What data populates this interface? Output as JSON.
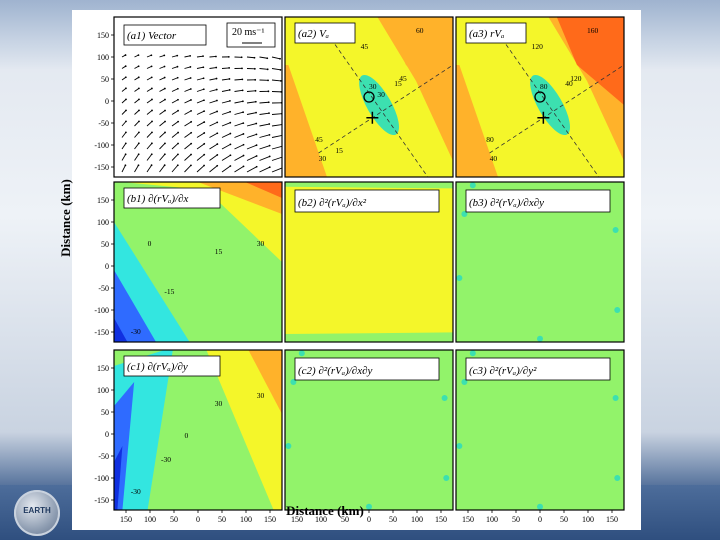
{
  "figure": {
    "y_axis_label": "Distance (km)",
    "x_axis_label": "Distance (km)",
    "tick_values": [
      "150",
      "100",
      "50",
      "0",
      "-50",
      "-100",
      "-150"
    ],
    "x_tick_values": [
      "150",
      "100",
      "50",
      "0",
      "50",
      "100",
      "150"
    ],
    "panels": [
      {
        "id": "a1",
        "title": "(a1) Vector",
        "scale_label": "20 ms⁻¹",
        "kind": "vector"
      },
      {
        "id": "a2",
        "title": "(a2) Vₐ",
        "kind": "contour-va",
        "contour_labels": [
          "60",
          "45",
          "30",
          "15",
          "30",
          "45",
          "45",
          "30",
          "15"
        ]
      },
      {
        "id": "a3",
        "title": "(a3) rVₐ",
        "kind": "contour-rva",
        "contour_labels": [
          "160",
          "120",
          "80",
          "40",
          "40",
          "80",
          "120"
        ]
      },
      {
        "id": "b1",
        "title": "(b1) ∂(rVₐ)/∂x",
        "kind": "contour-b1",
        "contour_labels": [
          "30",
          "15",
          "0",
          "-15",
          "-30"
        ]
      },
      {
        "id": "b2",
        "title": "(b2) ∂²(rVₐ)/∂x²",
        "kind": "flat-yellow"
      },
      {
        "id": "b3",
        "title": "(b3) ∂²(rVₐ)/∂x∂y",
        "kind": "flat-green"
      },
      {
        "id": "c1",
        "title": "(c1) ∂(rVₐ)/∂y",
        "kind": "contour-c1",
        "contour_labels": [
          "30",
          "30",
          "0",
          "-30",
          "-30"
        ]
      },
      {
        "id": "c2",
        "title": "(c2) ∂²(rVₐ)/∂x∂y",
        "kind": "flat-green"
      },
      {
        "id": "c3",
        "title": "(c3) ∂²(rVₐ)/∂y²",
        "kind": "flat-green"
      }
    ]
  },
  "logo": {
    "text": "EARTH"
  },
  "colors": {
    "darkblue": "#1030e0",
    "blue": "#2f6bff",
    "cyan": "#33e6e0",
    "teal": "#3ce0b0",
    "green": "#92f36a",
    "yellow": "#f4f62a",
    "orange": "#ffb22a",
    "dorange": "#ff6a1a",
    "red": "#e51a0a"
  }
}
